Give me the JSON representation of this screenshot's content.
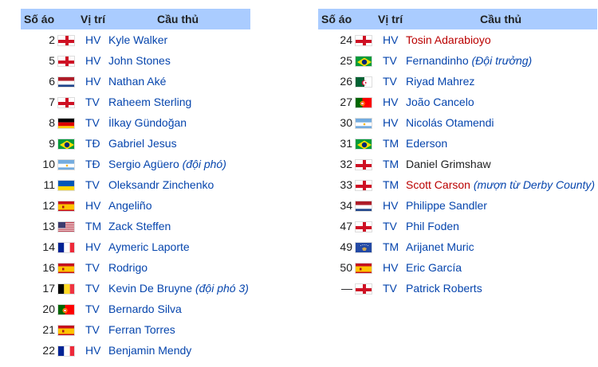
{
  "headers": {
    "number": "Số áo",
    "position": "Vị trí",
    "player": "Cầu thủ"
  },
  "colors": {
    "header_bg": "#aaccff",
    "link": "#0645ad",
    "redlink": "#ba0000"
  },
  "left": [
    {
      "number": "2",
      "flag": "england",
      "position": "HV",
      "name": "Kyle Walker",
      "style": "link"
    },
    {
      "number": "5",
      "flag": "england",
      "position": "HV",
      "name": "John Stones",
      "style": "link"
    },
    {
      "number": "6",
      "flag": "netherlands",
      "position": "HV",
      "name": "Nathan Aké",
      "style": "link"
    },
    {
      "number": "7",
      "flag": "england",
      "position": "TV",
      "name": "Raheem Sterling",
      "style": "link"
    },
    {
      "number": "8",
      "flag": "germany",
      "position": "TV",
      "name": "İlkay Gündoğan",
      "style": "link"
    },
    {
      "number": "9",
      "flag": "brazil",
      "position": "TĐ",
      "name": "Gabriel Jesus",
      "style": "link"
    },
    {
      "number": "10",
      "flag": "argentina",
      "position": "TĐ",
      "name": "Sergio Agüero",
      "style": "link",
      "note": "(đội phó)"
    },
    {
      "number": "11",
      "flag": "ukraine",
      "position": "TV",
      "name": "Oleksandr Zinchenko",
      "style": "link"
    },
    {
      "number": "12",
      "flag": "spain",
      "position": "HV",
      "name": "Angeliño",
      "style": "link"
    },
    {
      "number": "13",
      "flag": "usa",
      "position": "TM",
      "name": "Zack Steffen",
      "style": "link"
    },
    {
      "number": "14",
      "flag": "france",
      "position": "HV",
      "name": "Aymeric Laporte",
      "style": "link"
    },
    {
      "number": "16",
      "flag": "spain",
      "position": "TV",
      "name": "Rodrigo",
      "style": "link"
    },
    {
      "number": "17",
      "flag": "belgium",
      "position": "TV",
      "name": "Kevin De Bruyne",
      "style": "link",
      "note": "(đội phó 3)"
    },
    {
      "number": "20",
      "flag": "portugal",
      "position": "TV",
      "name": "Bernardo Silva",
      "style": "link"
    },
    {
      "number": "21",
      "flag": "spain",
      "position": "TV",
      "name": "Ferran Torres",
      "style": "link"
    },
    {
      "number": "22",
      "flag": "france",
      "position": "HV",
      "name": "Benjamin Mendy",
      "style": "link"
    }
  ],
  "right": [
    {
      "number": "24",
      "flag": "england",
      "position": "HV",
      "name": "Tosin Adarabioyo",
      "style": "red"
    },
    {
      "number": "25",
      "flag": "brazil",
      "position": "TV",
      "name": "Fernandinho",
      "style": "link",
      "note": "(Đội trưởng)"
    },
    {
      "number": "26",
      "flag": "algeria",
      "position": "TV",
      "name": "Riyad Mahrez",
      "style": "link"
    },
    {
      "number": "27",
      "flag": "portugal",
      "position": "HV",
      "name": "João Cancelo",
      "style": "link"
    },
    {
      "number": "30",
      "flag": "argentina",
      "position": "HV",
      "name": "Nicolás Otamendi",
      "style": "link"
    },
    {
      "number": "31",
      "flag": "brazil",
      "position": "TM",
      "name": "Ederson",
      "style": "link"
    },
    {
      "number": "32",
      "flag": "england",
      "position": "TM",
      "name": "Daniel Grimshaw",
      "style": "plain"
    },
    {
      "number": "33",
      "flag": "england",
      "position": "TM",
      "name": "Scott Carson",
      "style": "red",
      "note": "(mượn từ Derby County)"
    },
    {
      "number": "34",
      "flag": "netherlands",
      "position": "HV",
      "name": "Philippe Sandler",
      "style": "link"
    },
    {
      "number": "47",
      "flag": "england",
      "position": "TV",
      "name": "Phil Foden",
      "style": "link"
    },
    {
      "number": "49",
      "flag": "kosovo",
      "position": "TM",
      "name": "Arijanet Muric",
      "style": "link"
    },
    {
      "number": "50",
      "flag": "spain",
      "position": "HV",
      "name": "Eric García",
      "style": "link"
    },
    {
      "number": "—",
      "flag": "england",
      "position": "TV",
      "name": "Patrick Roberts",
      "style": "link"
    }
  ]
}
